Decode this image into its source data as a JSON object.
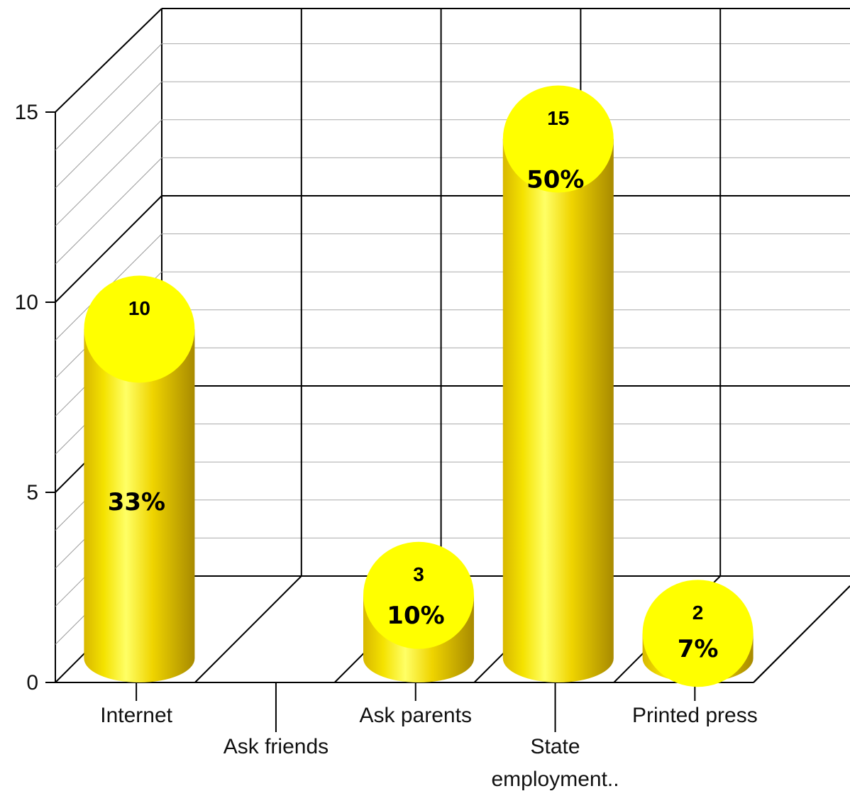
{
  "chart_data": {
    "type": "bar",
    "style": "3d-cylinder",
    "categories": [
      "Internet",
      "Ask friends",
      "Ask parents",
      "State employment..",
      "Printed press"
    ],
    "values": [
      10,
      0,
      3,
      15,
      2
    ],
    "percent_labels": [
      "33%",
      "",
      "10%",
      "50%",
      "7%"
    ],
    "value_labels": [
      "10",
      "",
      "3",
      "15",
      "2"
    ],
    "ylim": [
      0,
      15
    ],
    "yticks": [
      "0",
      "5",
      "10",
      "15"
    ],
    "grid": true,
    "legend": "none",
    "colors": {
      "bar_light": "#ffff44",
      "bar_dark": "#b39800",
      "bar_top": "#ffff00"
    }
  }
}
